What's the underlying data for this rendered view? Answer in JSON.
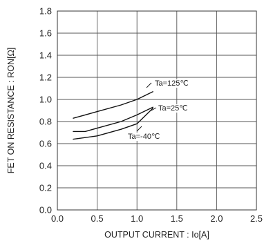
{
  "chart_data": {
    "type": "line",
    "title": "",
    "xlabel": "OUTPUT CURRENT : Io[A]",
    "ylabel": "FET ON RESISTANCE : RON[Ω]",
    "xlim": [
      0.0,
      2.5
    ],
    "ylim": [
      0.0,
      1.8
    ],
    "x_ticks": [
      "0.0",
      "0.5",
      "1.0",
      "1.5",
      "2.0",
      "2.5"
    ],
    "y_ticks": [
      "0.0",
      "0.2",
      "0.4",
      "0.6",
      "0.8",
      "1.0",
      "1.2",
      "1.4",
      "1.6",
      "1.8"
    ],
    "grid": true,
    "series": [
      {
        "name": "Ta=125℃",
        "x": [
          0.2,
          0.5,
          0.8,
          1.0,
          1.2
        ],
        "y": [
          0.83,
          0.89,
          0.95,
          1.0,
          1.07
        ]
      },
      {
        "name": "Ta=25℃",
        "x": [
          0.2,
          0.35,
          0.5,
          0.8,
          1.0,
          1.2
        ],
        "y": [
          0.71,
          0.71,
          0.74,
          0.8,
          0.86,
          0.93
        ]
      },
      {
        "name": "Ta=-40℃",
        "x": [
          0.2,
          0.5,
          0.8,
          1.0,
          1.2
        ],
        "y": [
          0.64,
          0.67,
          0.73,
          0.78,
          0.92
        ]
      }
    ]
  }
}
